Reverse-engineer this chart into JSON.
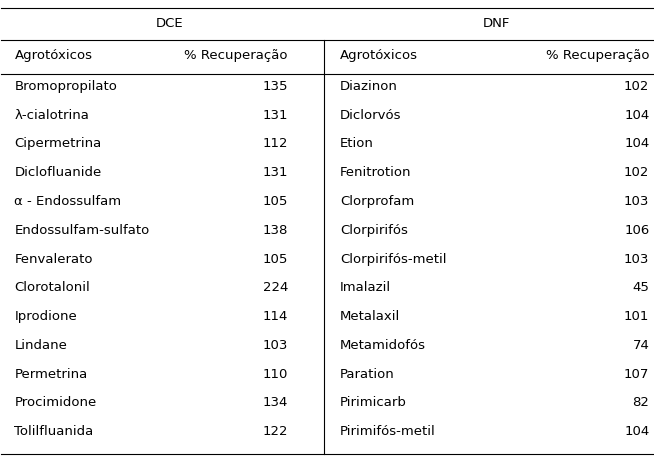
{
  "dce_header": "DCE",
  "dnf_header": "DNF",
  "col_headers": [
    "Agrotóxicos",
    "% Recuperação",
    "Agrotóxicos",
    "% Recuperação"
  ],
  "dce_rows": [
    [
      "Bromopropilato",
      "135"
    ],
    [
      "λ-cialotrina",
      "131"
    ],
    [
      "Cipermetrina",
      "112"
    ],
    [
      "Diclofluanide",
      "131"
    ],
    [
      "α - Endossulfam",
      "105"
    ],
    [
      "Endossulfam-sulfato",
      "138"
    ],
    [
      "Fenvalerato",
      "105"
    ],
    [
      "Clorotalonil",
      "224"
    ],
    [
      "Iprodione",
      "114"
    ],
    [
      "Lindane",
      "103"
    ],
    [
      "Permetrina",
      "110"
    ],
    [
      "Procimidone",
      "134"
    ],
    [
      "Tolilfluanida",
      "122"
    ]
  ],
  "dnf_rows": [
    [
      "Diazinon",
      "102"
    ],
    [
      "Diclorvós",
      "104"
    ],
    [
      "Etion",
      "104"
    ],
    [
      "Fenitrotion",
      "102"
    ],
    [
      "Clorprofam",
      "103"
    ],
    [
      "Clorpirifós",
      "106"
    ],
    [
      "Clorpirifós-metil",
      "103"
    ],
    [
      "Imalazil",
      "45"
    ],
    [
      "Metalaxil",
      "101"
    ],
    [
      "Metamidofós",
      "74"
    ],
    [
      "Paration",
      "107"
    ],
    [
      "Pirimicarb",
      "82"
    ],
    [
      "Pirimifós-metil",
      "104"
    ]
  ],
  "background_color": "#ffffff",
  "font_size": 9.5,
  "header_font_size": 9.5,
  "line_color": "black",
  "line_width": 0.8
}
